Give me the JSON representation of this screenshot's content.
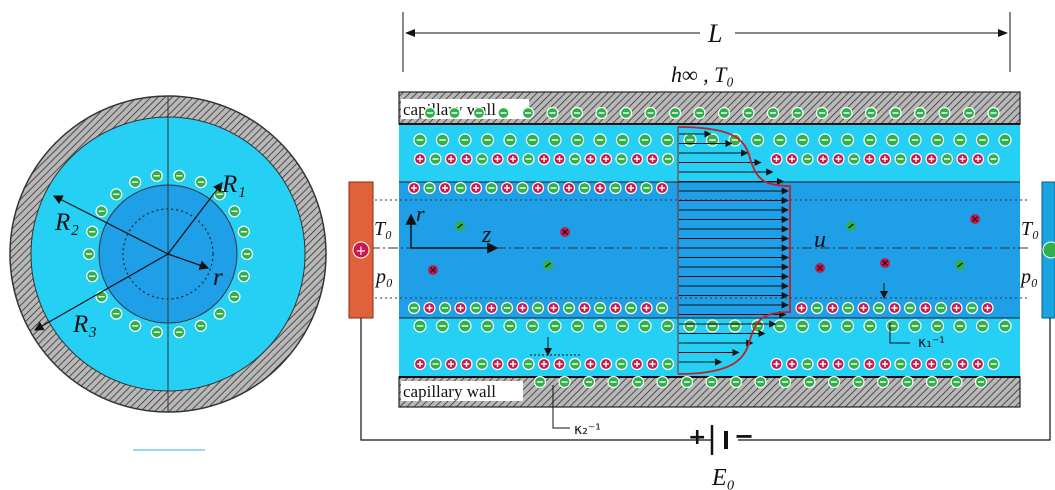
{
  "labels": {
    "length": "L",
    "ambient": "h∞ , T₀",
    "wall_top": "capillary wall",
    "wall_bottom": "capillary wall",
    "r": "r",
    "z": "z",
    "u": "u",
    "T0_left": "T₀",
    "p0_left": "p₀",
    "T0_right": "T₀",
    "p0_right": "p₀",
    "kappa1": "κ₁⁻¹",
    "kappa2": "κ₂⁻¹",
    "E0": "E₀",
    "R1": "R₁",
    "R2": "R₂",
    "R3": "R₃",
    "r_small": "r",
    "battery_plus": "+",
    "battery_minus": "−"
  },
  "colors": {
    "inner_fluid": "#1e9fe8",
    "annulus_fluid": "#26d0f5",
    "wall_fill": "#9a9a9a",
    "anode": "#e0623a",
    "cathode": "#1aa5e0",
    "positive_ion": "#c8194e",
    "negative_ion": "#2fb04a",
    "profile": "#c0202a"
  },
  "icons": {
    "positive": "plus-ion-icon",
    "negative": "minus-ion-icon"
  }
}
